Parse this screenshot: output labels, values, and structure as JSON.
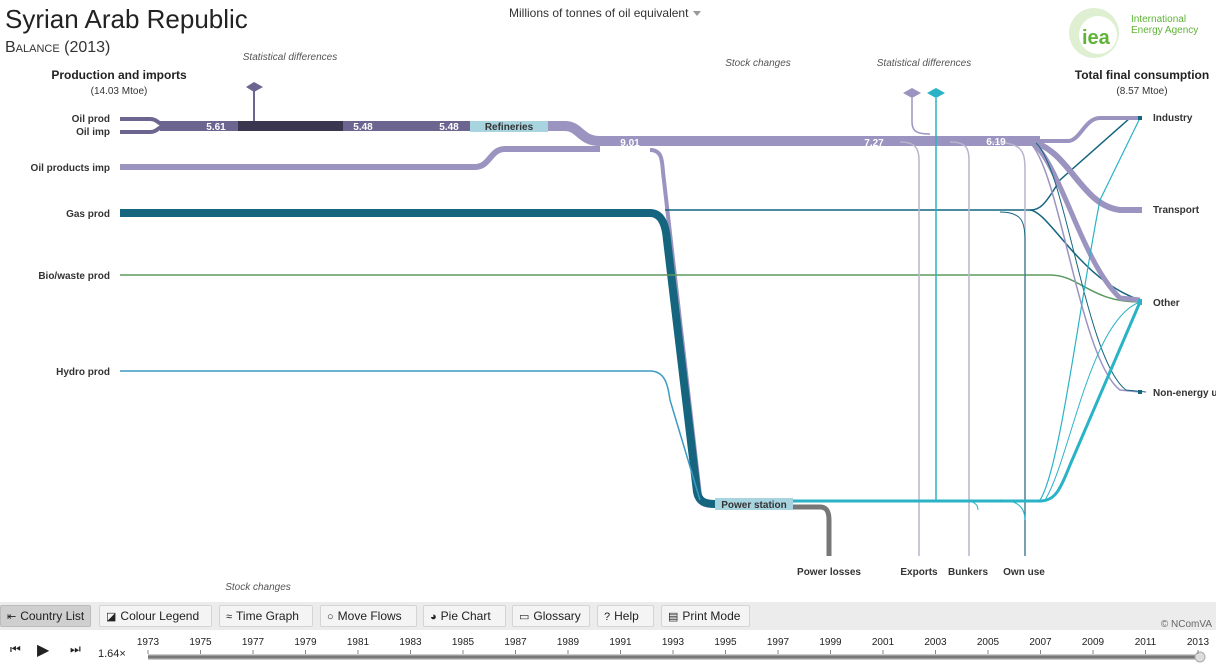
{
  "header": {
    "title": "Syrian Arab Republic",
    "subtitle": "Balance (2013)",
    "unit_selector": "Millions of tonnes of oil equivalent"
  },
  "logo": {
    "mark": "iea",
    "line1": "International",
    "line2": "Energy Agency",
    "color": "#5fb336"
  },
  "left_panel": {
    "heading": "Production and imports",
    "total": "(14.03 Mtoe)",
    "sources": [
      "Oil prod",
      "Oil imp",
      "Oil products imp",
      "Gas prod",
      "Bio/waste prod",
      "Hydro prod"
    ]
  },
  "right_panel": {
    "heading": "Total final consumption",
    "total": "(8.57 Mtoe)",
    "sectors": [
      "Industry",
      "Transport",
      "Other",
      "Non-energy u"
    ]
  },
  "bottom_sinks": [
    "Power losses",
    "Exports",
    "Bunkers",
    "Own use"
  ],
  "nodes": {
    "refineries": "Refineries",
    "power_station": "Power station"
  },
  "annotations": {
    "stat_diff_left": "Statistical differences",
    "stat_diff_right": "Statistical differences",
    "stock_changes_top": "Stock  changes",
    "stock_changes_bottom": "Stock changes"
  },
  "flow_values": [
    "5.61",
    "5.48",
    "5.48",
    "9.01",
    "7.27",
    "6.19"
  ],
  "colors": {
    "oil": "#9b93c0",
    "oil_dark": "#6b6590",
    "crude": "#3a3650",
    "gas": "#15657f",
    "bio": "#5b9a5e",
    "hydro": "#3b9ac4",
    "electricity": "#2ab3c6",
    "losses": "#777777",
    "node": "#a8d4e0"
  },
  "toolbar": {
    "country_list": "Country List",
    "colour_legend": "Colour Legend",
    "time_graph": "Time Graph",
    "move_flows": "Move Flows",
    "pie_chart": "Pie Chart",
    "glossary": "Glossary",
    "help": "Help",
    "print_mode": "Print Mode",
    "copyright": "© NComVA"
  },
  "timeline": {
    "speed": "1.64×",
    "selected_year": "2013",
    "year_labels": [
      "1973",
      "1975",
      "1977",
      "1979",
      "1981",
      "1983",
      "1985",
      "1987",
      "1989",
      "1991",
      "1993",
      "1995",
      "1997",
      "1999",
      "2001",
      "2003",
      "2005",
      "2007",
      "2009",
      "2011",
      "2013"
    ]
  }
}
